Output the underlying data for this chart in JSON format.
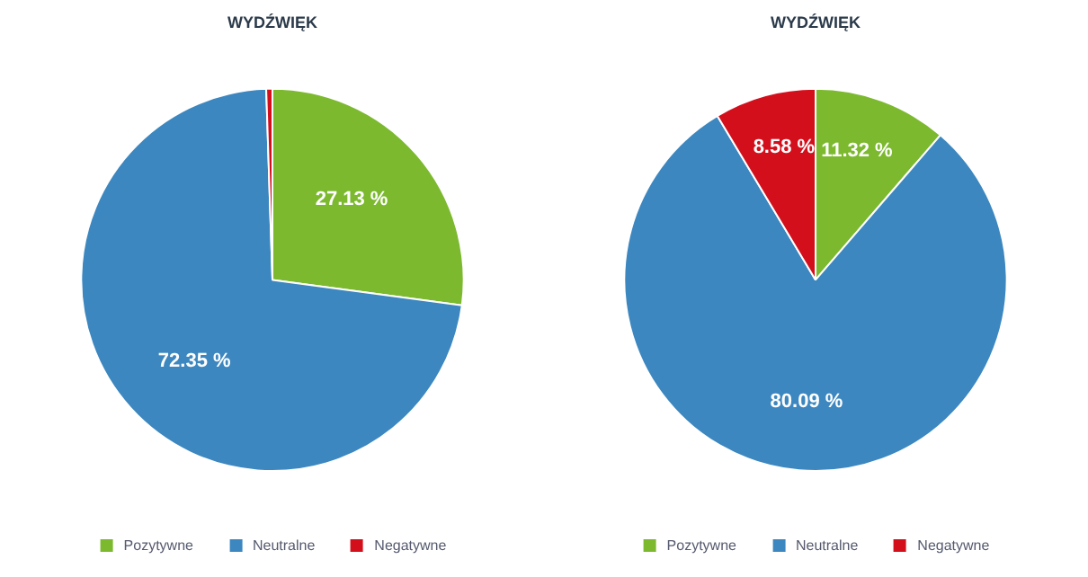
{
  "chart_data": [
    {
      "type": "pie",
      "title": "WYDŹWIĘK",
      "categories": [
        "Pozytywne",
        "Neutralne",
        "Negatywne"
      ],
      "values": [
        27.13,
        72.35,
        0.52
      ],
      "colors": [
        "#7cb92f",
        "#3c87bf",
        "#d40f1c"
      ],
      "value_labels": [
        "27.13 %",
        "72.35 %",
        null
      ],
      "legend": "bottom"
    },
    {
      "type": "pie",
      "title": "WYDŹWIĘK",
      "categories": [
        "Pozytywne",
        "Neutralne",
        "Negatywne"
      ],
      "values": [
        11.32,
        80.09,
        8.58
      ],
      "colors": [
        "#7cb92f",
        "#3c87bf",
        "#d40f1c"
      ],
      "value_labels": [
        "11.32 %",
        "80.09 %",
        "8.58 %"
      ],
      "legend": "bottom"
    }
  ]
}
